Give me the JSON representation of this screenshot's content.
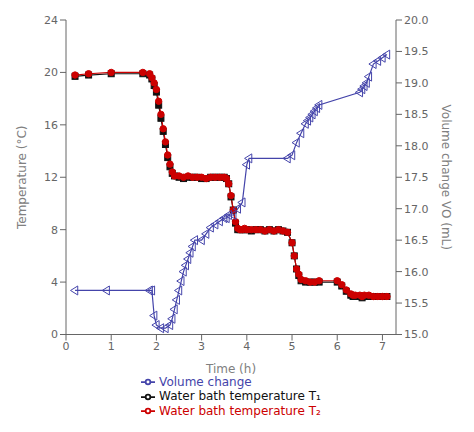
{
  "chart_data": {
    "type": "line",
    "xlabel": "Time (h)",
    "ylabel": "Temperature (°C)",
    "y2label": "Volume change VO (mL)",
    "xlim": [
      0,
      7.3
    ],
    "xticks": [
      0,
      1,
      2,
      3,
      4,
      5,
      6,
      7
    ],
    "ylim": [
      0,
      24
    ],
    "yticks": [
      0,
      4,
      8,
      12,
      16,
      20,
      24
    ],
    "y2lim": [
      15.0,
      20.0
    ],
    "y2ticks": [
      {
        "value": 15.0,
        "label": "15.0"
      },
      15.5,
      {
        "value": 16.0,
        "label": "16.0"
      },
      16.5,
      {
        "value": 17.0,
        "label": "17.0"
      },
      17.5,
      {
        "value": 18.0,
        "label": "18.0"
      },
      18.5,
      {
        "value": 19.0,
        "label": "19.0"
      },
      19.5,
      {
        "value": 20.0,
        "label": "20.0"
      }
    ],
    "grid": false,
    "legend": "bottom",
    "series": [
      {
        "name": "Water bath temperature T₁",
        "color": "#111111",
        "marker": "square",
        "axis": "y",
        "x": [
          0.2,
          0.5,
          1.0,
          1.7,
          1.85,
          1.9,
          1.95,
          2.0,
          2.05,
          2.1,
          2.15,
          2.2,
          2.25,
          2.3,
          2.35,
          2.4,
          2.5,
          2.6,
          2.7,
          2.8,
          2.9,
          3.0,
          3.1,
          3.2,
          3.3,
          3.4,
          3.5,
          3.55,
          3.6,
          3.65,
          3.7,
          3.75,
          3.8,
          3.85,
          3.9,
          3.95,
          4.0,
          4.1,
          4.2,
          4.3,
          4.4,
          4.5,
          4.6,
          4.7,
          4.8,
          4.9,
          5.0,
          5.05,
          5.1,
          5.15,
          5.2,
          5.3,
          5.4,
          5.5,
          5.6,
          6.0,
          6.1,
          6.2,
          6.3,
          6.35,
          6.4,
          6.5,
          6.55,
          6.6,
          6.7,
          6.8,
          6.9,
          7.0,
          7.1
        ],
        "values": [
          19.7,
          19.8,
          19.9,
          19.9,
          19.8,
          19.5,
          19.0,
          18.5,
          17.5,
          16.5,
          15.5,
          14.5,
          13.5,
          12.8,
          12.3,
          12.1,
          12.0,
          11.9,
          12.0,
          12.0,
          12.0,
          11.9,
          11.9,
          12.0,
          12.0,
          12.0,
          12.0,
          11.9,
          11.5,
          10.5,
          9.5,
          8.5,
          8.0,
          8.0,
          8.0,
          8.0,
          8.0,
          7.9,
          8.0,
          8.0,
          7.9,
          8.0,
          7.9,
          8.0,
          7.9,
          7.8,
          7.0,
          6.0,
          5.0,
          4.5,
          4.1,
          4.0,
          4.0,
          4.0,
          4.0,
          4.0,
          3.7,
          3.3,
          3.0,
          2.9,
          2.9,
          2.9,
          2.8,
          2.9,
          2.9,
          2.9,
          2.9,
          2.9,
          2.9
        ]
      },
      {
        "name": "Water bath temperature T₂",
        "color": "#cc0000",
        "marker": "circle",
        "axis": "y",
        "x": [
          0.2,
          0.5,
          1.0,
          1.7,
          1.85,
          1.9,
          1.95,
          2.0,
          2.05,
          2.1,
          2.15,
          2.2,
          2.25,
          2.3,
          2.35,
          2.4,
          2.5,
          2.6,
          2.7,
          2.8,
          2.9,
          3.0,
          3.1,
          3.2,
          3.3,
          3.4,
          3.5,
          3.55,
          3.6,
          3.65,
          3.7,
          3.75,
          3.8,
          3.85,
          3.9,
          3.95,
          4.0,
          4.1,
          4.2,
          4.3,
          4.4,
          4.5,
          4.6,
          4.7,
          4.8,
          4.9,
          5.0,
          5.05,
          5.1,
          5.15,
          5.2,
          5.3,
          5.4,
          5.5,
          5.6,
          6.0,
          6.1,
          6.2,
          6.3,
          6.35,
          6.4,
          6.5,
          6.55,
          6.6,
          6.7,
          6.8,
          6.9,
          7.0,
          7.1
        ],
        "values": [
          19.8,
          19.9,
          20.0,
          20.0,
          19.9,
          19.6,
          19.2,
          18.7,
          17.8,
          16.8,
          15.7,
          14.7,
          13.7,
          13.0,
          12.4,
          12.1,
          12.1,
          12.0,
          12.1,
          12.0,
          12.0,
          12.0,
          11.9,
          12.0,
          12.0,
          12.0,
          12.0,
          11.9,
          11.5,
          10.6,
          9.5,
          8.6,
          8.1,
          8.0,
          8.0,
          8.1,
          8.0,
          8.0,
          8.0,
          8.0,
          7.9,
          8.0,
          7.9,
          8.0,
          7.9,
          7.8,
          7.0,
          6.0,
          5.0,
          4.6,
          4.2,
          4.1,
          4.0,
          4.0,
          4.1,
          4.1,
          3.8,
          3.4,
          3.1,
          3.0,
          3.0,
          3.0,
          2.9,
          3.0,
          3.0,
          2.9,
          2.9,
          2.9,
          2.9
        ]
      },
      {
        "name": "Volume change",
        "color": "#4444aa",
        "marker": "triangle-left",
        "axis": "y2",
        "x": [
          0.2,
          0.9,
          1.85,
          1.9,
          1.95,
          2.0,
          2.1,
          2.2,
          2.3,
          2.35,
          2.4,
          2.45,
          2.5,
          2.55,
          2.6,
          2.65,
          2.7,
          2.75,
          2.8,
          2.85,
          3.0,
          3.1,
          3.2,
          3.3,
          3.4,
          3.5,
          3.55,
          3.6,
          3.7,
          3.8,
          3.9,
          4.0,
          4.05,
          4.9,
          5.0,
          5.1,
          5.2,
          5.3,
          5.35,
          5.4,
          5.45,
          5.5,
          5.55,
          5.6,
          6.5,
          6.55,
          6.6,
          6.65,
          6.7,
          6.8,
          6.9,
          7.0,
          7.1
        ],
        "values": [
          15.7,
          15.7,
          15.7,
          15.7,
          15.3,
          15.15,
          15.1,
          15.1,
          15.15,
          15.25,
          15.4,
          15.55,
          15.7,
          15.85,
          16.0,
          16.1,
          16.2,
          16.3,
          16.4,
          16.5,
          16.5,
          16.6,
          16.7,
          16.75,
          16.8,
          16.85,
          16.85,
          16.9,
          16.9,
          17.0,
          17.1,
          17.7,
          17.8,
          17.8,
          17.85,
          18.05,
          18.2,
          18.35,
          18.4,
          18.45,
          18.5,
          18.55,
          18.6,
          18.65,
          18.85,
          18.9,
          18.95,
          19.0,
          19.1,
          19.3,
          19.35,
          19.4,
          19.45
        ]
      }
    ]
  }
}
